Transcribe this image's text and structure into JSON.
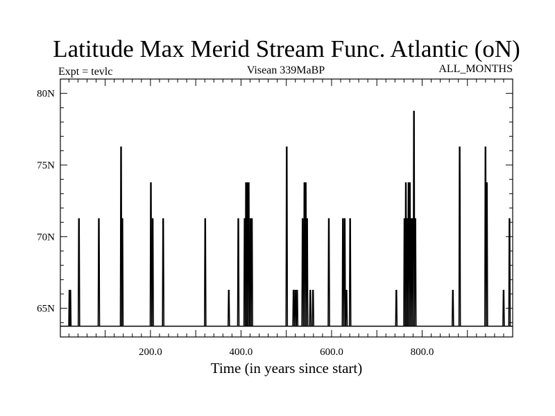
{
  "chart_data": {
    "type": "line",
    "title": "Latitude Max Merid Stream Func. Atlantic (oN)",
    "subtitle_left": "Expt = tevlc",
    "subtitle_center": "Visean 339MaBP",
    "subtitle_right": "ALL_MONTHS",
    "xlabel": "Time (in years since start)",
    "ylabel": "",
    "xlim": [
      1,
      1000
    ],
    "ylim": [
      63,
      81
    ],
    "baseline": 63.75,
    "x_ticks": [
      {
        "value": 200,
        "label": "200.0"
      },
      {
        "value": 400,
        "label": "400.0"
      },
      {
        "value": 600,
        "label": "600.0"
      },
      {
        "value": 800,
        "label": "800.0"
      }
    ],
    "y_ticks": [
      {
        "value": 65,
        "label": "65N"
      },
      {
        "value": 70,
        "label": "70N"
      },
      {
        "value": 75,
        "label": "75N"
      },
      {
        "value": 80,
        "label": "80N"
      }
    ],
    "series": [
      {
        "name": "latitude_max",
        "spikes": [
          {
            "x": 21,
            "y": 66.25
          },
          {
            "x": 23,
            "y": 66.25
          },
          {
            "x": 42,
            "y": 71.25
          },
          {
            "x": 86,
            "y": 71.25
          },
          {
            "x": 135,
            "y": 76.25
          },
          {
            "x": 138,
            "y": 71.25
          },
          {
            "x": 201,
            "y": 73.75
          },
          {
            "x": 205,
            "y": 71.25
          },
          {
            "x": 228,
            "y": 71.25
          },
          {
            "x": 321,
            "y": 71.25
          },
          {
            "x": 373,
            "y": 66.25
          },
          {
            "x": 394,
            "y": 71.25
          },
          {
            "x": 408,
            "y": 71.25
          },
          {
            "x": 411,
            "y": 73.75
          },
          {
            "x": 414,
            "y": 73.75
          },
          {
            "x": 417,
            "y": 73.75
          },
          {
            "x": 421,
            "y": 71.25
          },
          {
            "x": 424,
            "y": 71.25
          },
          {
            "x": 501,
            "y": 76.25
          },
          {
            "x": 516,
            "y": 66.25
          },
          {
            "x": 520,
            "y": 66.25
          },
          {
            "x": 524,
            "y": 66.25
          },
          {
            "x": 536,
            "y": 71.25
          },
          {
            "x": 540,
            "y": 73.75
          },
          {
            "x": 543,
            "y": 73.75
          },
          {
            "x": 546,
            "y": 71.25
          },
          {
            "x": 553,
            "y": 66.25
          },
          {
            "x": 559,
            "y": 66.25
          },
          {
            "x": 594,
            "y": 71.25
          },
          {
            "x": 625,
            "y": 71.25
          },
          {
            "x": 629,
            "y": 71.25
          },
          {
            "x": 633,
            "y": 66.25
          },
          {
            "x": 641,
            "y": 71.25
          },
          {
            "x": 743,
            "y": 66.25
          },
          {
            "x": 761,
            "y": 71.25
          },
          {
            "x": 764,
            "y": 73.75
          },
          {
            "x": 767,
            "y": 71.25
          },
          {
            "x": 770,
            "y": 73.75
          },
          {
            "x": 773,
            "y": 73.75
          },
          {
            "x": 776,
            "y": 71.25
          },
          {
            "x": 779,
            "y": 71.25
          },
          {
            "x": 782,
            "y": 78.75
          },
          {
            "x": 785,
            "y": 71.25
          },
          {
            "x": 868,
            "y": 66.25
          },
          {
            "x": 883,
            "y": 76.25
          },
          {
            "x": 940,
            "y": 76.25
          },
          {
            "x": 943,
            "y": 73.75
          },
          {
            "x": 980,
            "y": 66.25
          },
          {
            "x": 993,
            "y": 71.25
          }
        ]
      }
    ]
  }
}
